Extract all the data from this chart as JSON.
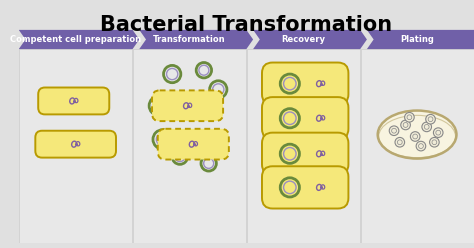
{
  "title": "Bacterial Transformation",
  "title_fontsize": 15,
  "title_fontweight": "bold",
  "steps": [
    "Competent cell preparation",
    "Transformation",
    "Recovery",
    "Plating"
  ],
  "banner_color": "#7060a8",
  "bg_color": "#e0e0e0",
  "panel_bg": "#e8e8e8",
  "cell_fill": "#f5e87a",
  "cell_edge": "#b89a00",
  "plasmid_outer": "#6a8a3c",
  "plasmid_inner": "#9b8fc0",
  "chromosome_color": "#8060a0",
  "petri_fill": "#f8f4e0",
  "petri_edge": "#b8a870",
  "colony_fill": "#f0ecd8",
  "colony_edge": "#888888"
}
